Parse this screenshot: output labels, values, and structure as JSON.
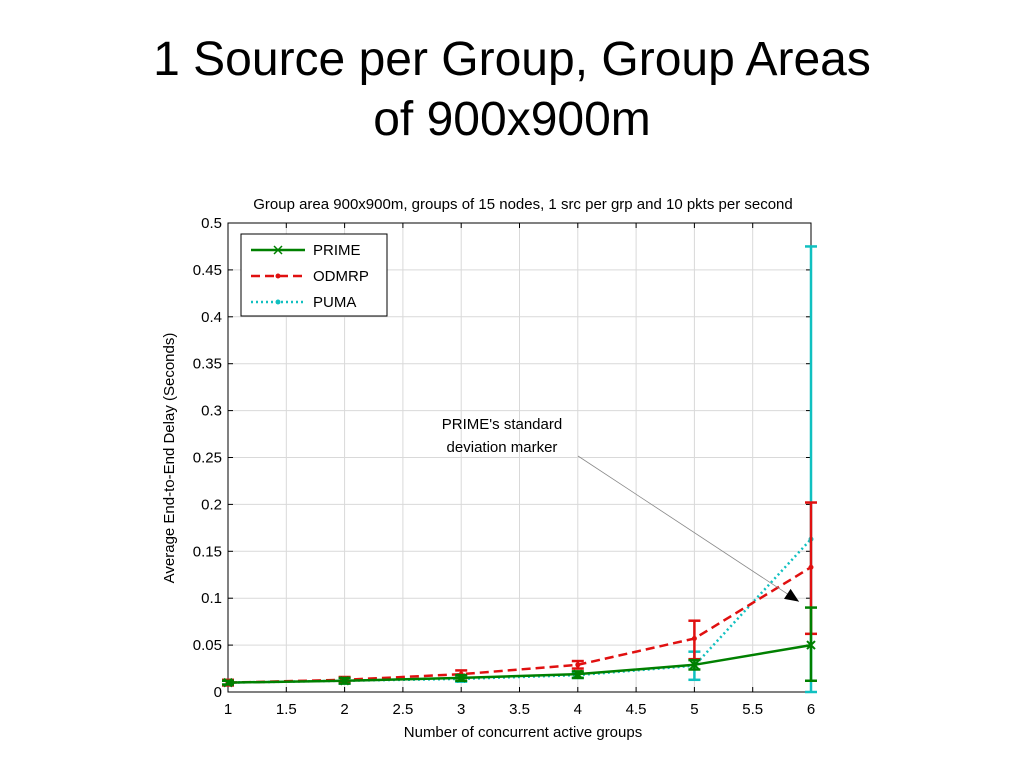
{
  "slide": {
    "title_line1": "1 Source per Group, Group Areas",
    "title_line2": "of 900x900m"
  },
  "chart_data": {
    "type": "line",
    "title": "Group area 900x900m, groups of 15 nodes, 1 src per grp and 10 pkts per second",
    "xlabel": "Number of concurrent active groups",
    "ylabel": "Average End-to-End Delay (Seconds)",
    "xlim": [
      1,
      6
    ],
    "ylim": [
      0,
      0.5
    ],
    "xticks": [
      "1",
      "1.5",
      "2",
      "2.5",
      "3",
      "3.5",
      "4",
      "4.5",
      "5",
      "5.5",
      "6"
    ],
    "yticks": [
      "0",
      "0.05",
      "0.1",
      "0.15",
      "0.2",
      "0.25",
      "0.3",
      "0.35",
      "0.4",
      "0.45",
      "0.5"
    ],
    "grid": true,
    "legend_position": "top-left",
    "x": [
      1,
      2,
      3,
      4,
      5,
      6
    ],
    "series": [
      {
        "name": "PRIME",
        "color": "#008000",
        "style": "solid",
        "marker": "x",
        "values": [
          0.01,
          0.012,
          0.015,
          0.019,
          0.029,
          0.05
        ],
        "err_low": [
          0.008,
          0.009,
          0.012,
          0.015,
          0.024,
          0.012
        ],
        "err_high": [
          0.012,
          0.015,
          0.018,
          0.022,
          0.034,
          0.09
        ]
      },
      {
        "name": "ODMRP",
        "color": "#e01010",
        "style": "dashed",
        "marker": "dot",
        "values": [
          0.01,
          0.013,
          0.019,
          0.029,
          0.057,
          0.133
        ],
        "err_low": [
          0.007,
          0.01,
          0.015,
          0.025,
          0.035,
          0.062
        ],
        "err_high": [
          0.013,
          0.016,
          0.023,
          0.033,
          0.076,
          0.202
        ]
      },
      {
        "name": "PUMA",
        "color": "#10c0c0",
        "style": "dotted",
        "marker": "dot",
        "values": [
          0.01,
          0.012,
          0.014,
          0.018,
          0.028,
          0.163
        ],
        "err_low": [
          0.007,
          0.009,
          0.011,
          0.015,
          0.013,
          0.0
        ],
        "err_high": [
          0.013,
          0.015,
          0.017,
          0.021,
          0.043,
          0.475
        ]
      }
    ],
    "annotation": {
      "line1": "PRIME's standard",
      "line2": "deviation marker",
      "points_to": {
        "x": 6,
        "y": 0.09
      }
    }
  }
}
